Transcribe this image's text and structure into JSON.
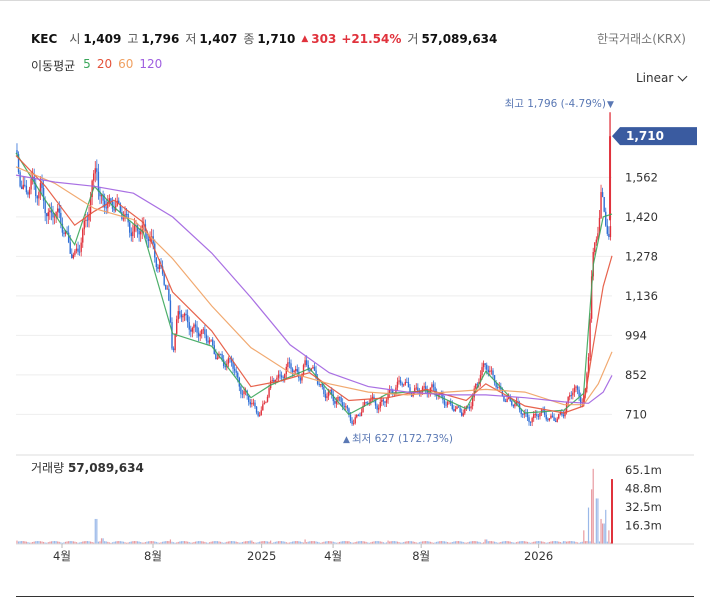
{
  "header": {
    "symbol": "KEC",
    "open_label": "시",
    "open": "1,409",
    "high_label": "고",
    "high": "1,796",
    "low_label": "저",
    "low": "1,407",
    "close_label": "종",
    "close": "1,710",
    "change": "303",
    "change_pct": "+21.54%",
    "volume_label": "거",
    "volume": "57,089,634",
    "exchange": "한국거래소(KRX)"
  },
  "moving_average": {
    "label": "이동평균",
    "periods": [
      {
        "label": "5",
        "color": "#3aa65a"
      },
      {
        "label": "20",
        "color": "#e4523a"
      },
      {
        "label": "60",
        "color": "#f0a060"
      },
      {
        "label": "120",
        "color": "#a060e0"
      }
    ]
  },
  "scale_mode": "Linear",
  "colors": {
    "up": "#e0323c",
    "down": "#2f6fd6",
    "current_tag": "#3a5ba0",
    "annotation": "#5a78b4"
  },
  "chart_data": {
    "type": "candlestick",
    "price_axis": {
      "ticks": [
        1562,
        1420,
        1278,
        1136,
        994,
        852,
        710
      ],
      "tick_labels": [
        "1,562",
        "1,420",
        "1,278",
        "1,136",
        "994",
        "852",
        "710"
      ],
      "range": [
        600,
        1840
      ]
    },
    "current_price": {
      "value": 1710,
      "label": "1,710"
    },
    "high_annotation": {
      "text": "최고 1,796 (-4.79%)",
      "value": 1796
    },
    "low_annotation": {
      "text": "최저 627 (172.73%)",
      "value": 627
    },
    "time_axis": {
      "labels": [
        "4월",
        "8월",
        "2025",
        "4월",
        "8월",
        "2026"
      ]
    },
    "series": [
      {
        "name": "price",
        "points": [
          [
            0,
            1660
          ],
          [
            5,
            1560
          ],
          [
            10,
            1500
          ],
          [
            15,
            1540
          ],
          [
            20,
            1490
          ],
          [
            25,
            1520
          ],
          [
            30,
            1470
          ],
          [
            35,
            1430
          ],
          [
            40,
            1450
          ],
          [
            45,
            1390
          ],
          [
            50,
            1350
          ],
          [
            55,
            1310
          ],
          [
            60,
            1290
          ],
          [
            65,
            1330
          ],
          [
            70,
            1380
          ],
          [
            75,
            1440
          ],
          [
            80,
            1560
          ],
          [
            82,
            1640
          ],
          [
            85,
            1480
          ],
          [
            90,
            1500
          ],
          [
            95,
            1470
          ],
          [
            100,
            1460
          ],
          [
            105,
            1430
          ],
          [
            110,
            1420
          ],
          [
            115,
            1400
          ],
          [
            120,
            1380
          ],
          [
            125,
            1390
          ],
          [
            130,
            1360
          ],
          [
            135,
            1340
          ],
          [
            140,
            1310
          ],
          [
            145,
            1250
          ],
          [
            150,
            1230
          ],
          [
            155,
            1150
          ],
          [
            158,
            1020
          ],
          [
            160,
            920
          ],
          [
            163,
            1000
          ],
          [
            166,
            1060
          ],
          [
            170,
            1080
          ],
          [
            175,
            1050
          ],
          [
            180,
            1030
          ],
          [
            185,
            1010
          ],
          [
            190,
            990
          ],
          [
            195,
            980
          ],
          [
            200,
            960
          ],
          [
            205,
            930
          ],
          [
            210,
            920
          ],
          [
            215,
            880
          ],
          [
            220,
            900
          ],
          [
            225,
            840
          ],
          [
            230,
            800
          ],
          [
            235,
            790
          ],
          [
            240,
            760
          ],
          [
            245,
            720
          ],
          [
            250,
            700
          ],
          [
            255,
            760
          ],
          [
            260,
            820
          ],
          [
            265,
            860
          ],
          [
            270,
            840
          ],
          [
            275,
            860
          ],
          [
            280,
            880
          ],
          [
            285,
            860
          ],
          [
            290,
            850
          ],
          [
            295,
            900
          ],
          [
            300,
            880
          ],
          [
            305,
            850
          ],
          [
            310,
            810
          ],
          [
            315,
            780
          ],
          [
            320,
            800
          ],
          [
            325,
            770
          ],
          [
            330,
            760
          ],
          [
            335,
            740
          ],
          [
            340,
            700
          ],
          [
            345,
            680
          ],
          [
            350,
            720
          ],
          [
            355,
            740
          ],
          [
            360,
            760
          ],
          [
            365,
            750
          ],
          [
            370,
            730
          ],
          [
            375,
            760
          ],
          [
            380,
            790
          ],
          [
            385,
            800
          ],
          [
            390,
            810
          ],
          [
            395,
            820
          ],
          [
            400,
            805
          ],
          [
            405,
            790
          ],
          [
            410,
            810
          ],
          [
            415,
            800
          ],
          [
            420,
            790
          ],
          [
            425,
            795
          ],
          [
            430,
            790
          ],
          [
            435,
            775
          ],
          [
            440,
            760
          ],
          [
            445,
            740
          ],
          [
            450,
            720
          ],
          [
            455,
            710
          ],
          [
            460,
            725
          ],
          [
            465,
            760
          ],
          [
            470,
            820
          ],
          [
            475,
            860
          ],
          [
            480,
            880
          ],
          [
            485,
            850
          ],
          [
            490,
            830
          ],
          [
            495,
            800
          ],
          [
            500,
            770
          ],
          [
            505,
            750
          ],
          [
            510,
            740
          ],
          [
            515,
            725
          ],
          [
            520,
            710
          ],
          [
            525,
            700
          ],
          [
            530,
            705
          ],
          [
            535,
            715
          ],
          [
            540,
            700
          ],
          [
            545,
            690
          ],
          [
            550,
            700
          ],
          [
            555,
            710
          ],
          [
            560,
            720
          ],
          [
            565,
            760
          ],
          [
            570,
            800
          ],
          [
            575,
            780
          ],
          [
            578,
            760
          ],
          [
            582,
            800
          ],
          [
            585,
            940
          ],
          [
            588,
            1200
          ],
          [
            590,
            1280
          ],
          [
            593,
            1340
          ],
          [
            596,
            1400
          ],
          [
            598,
            1480
          ],
          [
            600,
            1440
          ],
          [
            603,
            1400
          ],
          [
            606,
            1340
          ],
          [
            609,
            1409
          ]
        ]
      },
      {
        "name": "5",
        "values": [
          [
            0,
            1650
          ],
          [
            30,
            1480
          ],
          [
            60,
            1320
          ],
          [
            80,
            1530
          ],
          [
            100,
            1455
          ],
          [
            130,
            1365
          ],
          [
            160,
            1000
          ],
          [
            200,
            955
          ],
          [
            240,
            770
          ],
          [
            260,
            815
          ],
          [
            300,
            875
          ],
          [
            340,
            710
          ],
          [
            380,
            785
          ],
          [
            420,
            795
          ],
          [
            460,
            730
          ],
          [
            480,
            865
          ],
          [
            520,
            715
          ],
          [
            560,
            725
          ],
          [
            580,
            785
          ],
          [
            590,
            1250
          ],
          [
            600,
            1420
          ],
          [
            609,
            1430
          ]
        ]
      },
      {
        "name": "20",
        "values": [
          [
            0,
            1640
          ],
          [
            30,
            1530
          ],
          [
            60,
            1390
          ],
          [
            80,
            1440
          ],
          [
            100,
            1480
          ],
          [
            130,
            1400
          ],
          [
            160,
            1150
          ],
          [
            200,
            1010
          ],
          [
            240,
            810
          ],
          [
            270,
            830
          ],
          [
            300,
            860
          ],
          [
            340,
            760
          ],
          [
            380,
            770
          ],
          [
            420,
            800
          ],
          [
            460,
            760
          ],
          [
            480,
            820
          ],
          [
            520,
            740
          ],
          [
            560,
            715
          ],
          [
            580,
            740
          ],
          [
            590,
            960
          ],
          [
            600,
            1170
          ],
          [
            609,
            1280
          ]
        ]
      },
      {
        "name": "60",
        "values": [
          [
            0,
            1600
          ],
          [
            40,
            1540
          ],
          [
            80,
            1450
          ],
          [
            120,
            1410
          ],
          [
            160,
            1270
          ],
          [
            200,
            1100
          ],
          [
            240,
            950
          ],
          [
            280,
            860
          ],
          [
            320,
            820
          ],
          [
            360,
            790
          ],
          [
            400,
            780
          ],
          [
            440,
            790
          ],
          [
            480,
            800
          ],
          [
            520,
            790
          ],
          [
            560,
            745
          ],
          [
            580,
            745
          ],
          [
            595,
            820
          ],
          [
            609,
            935
          ]
        ]
      },
      {
        "name": "120",
        "values": [
          [
            0,
            1570
          ],
          [
            40,
            1545
          ],
          [
            80,
            1530
          ],
          [
            120,
            1505
          ],
          [
            160,
            1420
          ],
          [
            200,
            1290
          ],
          [
            240,
            1130
          ],
          [
            280,
            960
          ],
          [
            320,
            860
          ],
          [
            360,
            810
          ],
          [
            400,
            790
          ],
          [
            440,
            780
          ],
          [
            480,
            780
          ],
          [
            520,
            770
          ],
          [
            560,
            755
          ],
          [
            585,
            750
          ],
          [
            600,
            790
          ],
          [
            609,
            850
          ]
        ]
      }
    ],
    "volume": {
      "label": "거래량",
      "value": "57,089,634",
      "axis_ticks": [
        "65.1m",
        "48.8m",
        "32.5m",
        "16.3m"
      ],
      "axis_values": [
        65.1,
        48.8,
        32.5,
        16.3
      ],
      "range": [
        0,
        72
      ],
      "spikes": [
        [
          0,
          3
        ],
        [
          20,
          2.5
        ],
        [
          40,
          2
        ],
        [
          82,
          22
        ],
        [
          88,
          5
        ],
        [
          120,
          2
        ],
        [
          158,
          4
        ],
        [
          200,
          2
        ],
        [
          240,
          3
        ],
        [
          260,
          3
        ],
        [
          295,
          4
        ],
        [
          340,
          2.5
        ],
        [
          380,
          3
        ],
        [
          420,
          2
        ],
        [
          480,
          4
        ],
        [
          520,
          2
        ],
        [
          560,
          2.5
        ],
        [
          580,
          12
        ],
        [
          585,
          32
        ],
        [
          588,
          48
        ],
        [
          590,
          66
        ],
        [
          594,
          40
        ],
        [
          598,
          22
        ],
        [
          600,
          18
        ],
        [
          603,
          30
        ],
        [
          606,
          12
        ],
        [
          609,
          57
        ]
      ]
    }
  }
}
